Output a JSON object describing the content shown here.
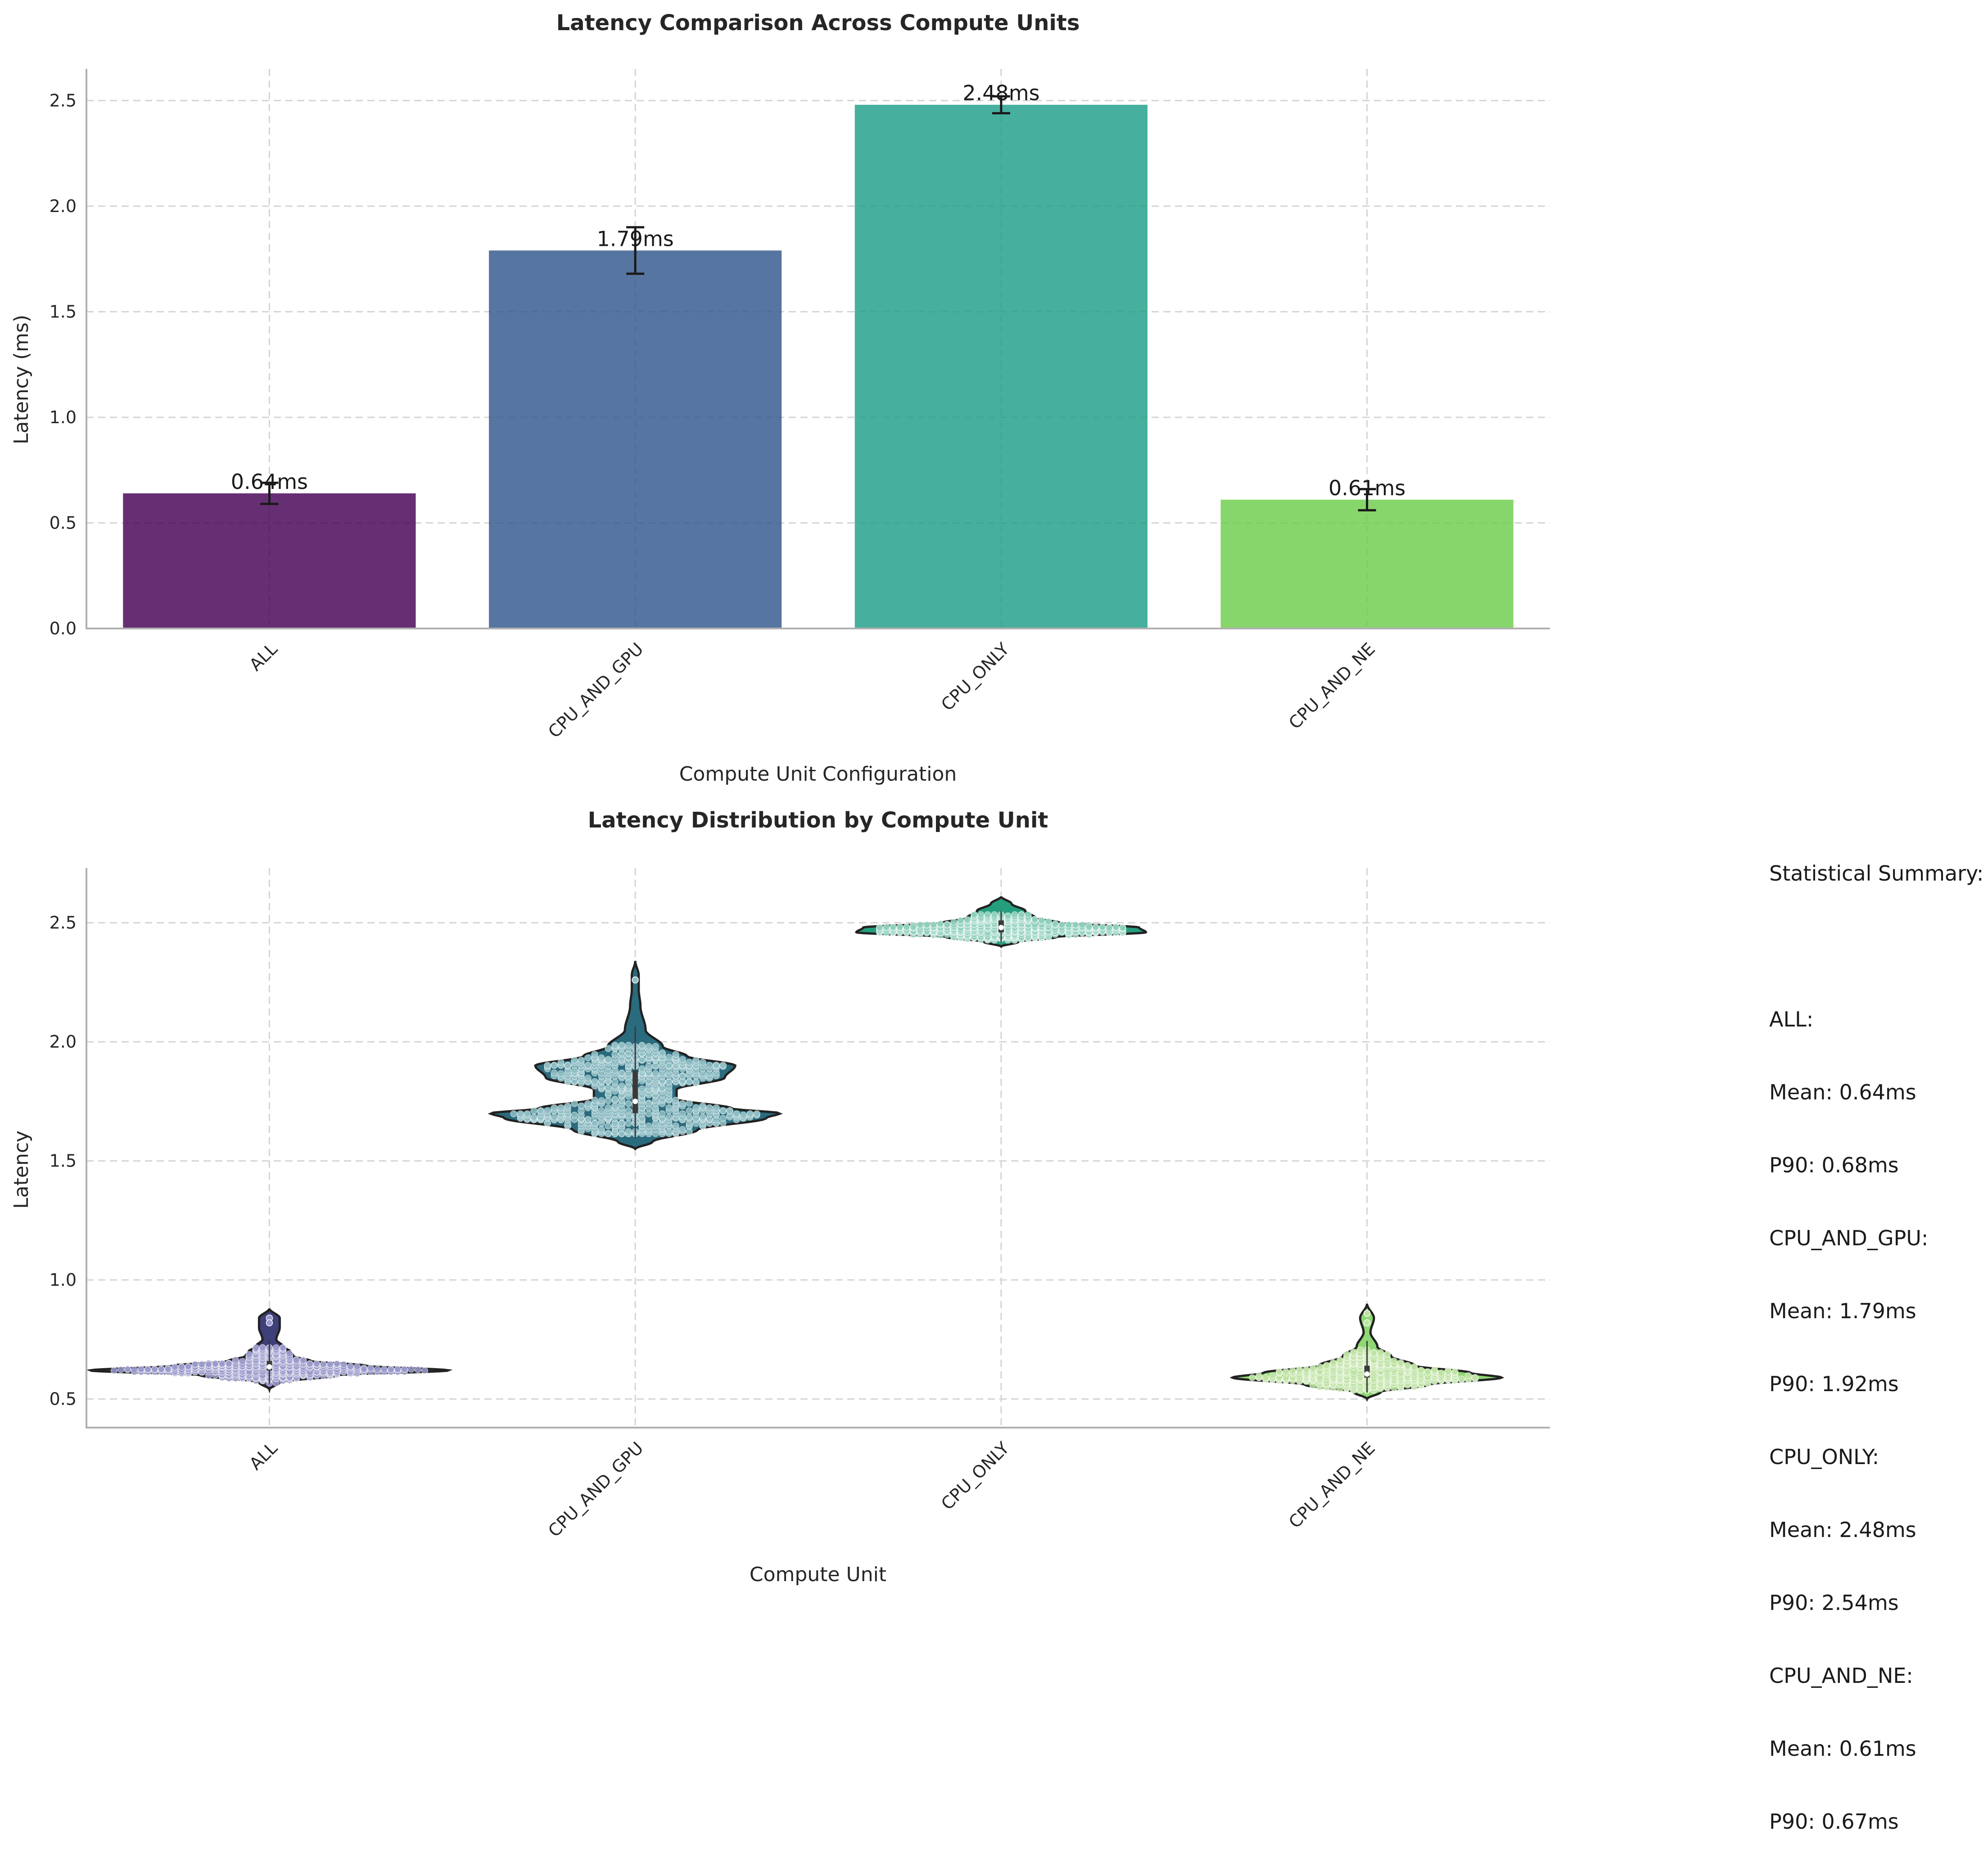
{
  "chart_data": [
    {
      "type": "bar",
      "title": "Latency Comparison Across Compute Units",
      "xlabel": "Compute Unit Configuration",
      "ylabel": "Latency (ms)",
      "categories": [
        "ALL",
        "CPU_AND_GPU",
        "CPU_ONLY",
        "CPU_AND_NE"
      ],
      "values": [
        0.64,
        1.79,
        2.48,
        0.61
      ],
      "errors": [
        0.05,
        0.11,
        0.04,
        0.05
      ],
      "data_labels": [
        "0.64ms",
        "1.79ms",
        "2.48ms",
        "0.61ms"
      ],
      "colors": [
        "#440154",
        "#31578c",
        "#1f9e89",
        "#6dcd4a"
      ],
      "ylim": [
        0,
        2.65
      ],
      "yticks": [
        "0.0",
        "0.5",
        "1.0",
        "1.5",
        "2.0",
        "2.5"
      ],
      "grid": true
    },
    {
      "type": "violin",
      "title": "Latency Distribution by Compute Unit",
      "xlabel": "Compute Unit",
      "ylabel": "Latency",
      "categories": [
        "ALL",
        "CPU_AND_GPU",
        "CPU_ONLY",
        "CPU_AND_NE"
      ],
      "ylim": [
        0.38,
        2.73
      ],
      "yticks": [
        "0.5",
        "1.0",
        "1.5",
        "2.0",
        "2.5"
      ],
      "colors": [
        "#3f3f7a",
        "#2a6b7e",
        "#259e7e",
        "#8fd873"
      ],
      "dot_colors": [
        "#9a9acd",
        "#8fbfc6",
        "#8ed0bc",
        "#bfe3a5"
      ],
      "distributions": [
        {
          "profile": [
            [
              0.54,
              0
            ],
            [
              0.57,
              0.03
            ],
            [
              0.6,
              0.2
            ],
            [
              0.62,
              0.52
            ],
            [
              0.64,
              0.28
            ],
            [
              0.66,
              0.12
            ],
            [
              0.68,
              0.07
            ],
            [
              0.7,
              0.06
            ],
            [
              0.72,
              0.04
            ],
            [
              0.75,
              0.02
            ],
            [
              0.8,
              0.03
            ],
            [
              0.84,
              0.03
            ],
            [
              0.88,
              0
            ]
          ],
          "q1": 0.62,
          "median": 0.635,
          "q3": 0.66,
          "mean": 0.64,
          "p90": 0.68,
          "outliers": [
            0.84,
            0.82
          ]
        },
        {
          "profile": [
            [
              1.55,
              0
            ],
            [
              1.58,
              0.05
            ],
            [
              1.63,
              0.18
            ],
            [
              1.68,
              0.38
            ],
            [
              1.7,
              0.42
            ],
            [
              1.72,
              0.28
            ],
            [
              1.76,
              0.12
            ],
            [
              1.8,
              0.12
            ],
            [
              1.85,
              0.26
            ],
            [
              1.9,
              0.29
            ],
            [
              1.94,
              0.15
            ],
            [
              1.98,
              0.08
            ],
            [
              2.05,
              0.03
            ],
            [
              2.15,
              0.015
            ],
            [
              2.22,
              0.01
            ],
            [
              2.28,
              0.01
            ],
            [
              2.34,
              0
            ]
          ],
          "q1": 1.7,
          "median": 1.75,
          "q3": 1.88,
          "mean": 1.79,
          "p90": 1.92,
          "outliers": [
            2.26
          ]
        },
        {
          "profile": [
            [
              2.4,
              0
            ],
            [
              2.42,
              0.05
            ],
            [
              2.44,
              0.16
            ],
            [
              2.46,
              0.42
            ],
            [
              2.48,
              0.4
            ],
            [
              2.5,
              0.17
            ],
            [
              2.52,
              0.1
            ],
            [
              2.55,
              0.07
            ],
            [
              2.58,
              0.03
            ],
            [
              2.61,
              0
            ]
          ],
          "q1": 2.46,
          "median": 2.48,
          "q3": 2.51,
          "mean": 2.48,
          "p90": 2.54,
          "outliers": []
        },
        {
          "profile": [
            [
              0.5,
              0
            ],
            [
              0.53,
              0.04
            ],
            [
              0.56,
              0.18
            ],
            [
              0.59,
              0.39
            ],
            [
              0.61,
              0.3
            ],
            [
              0.64,
              0.14
            ],
            [
              0.68,
              0.07
            ],
            [
              0.72,
              0.03
            ],
            [
              0.78,
              0.01
            ],
            [
              0.84,
              0.02
            ],
            [
              0.9,
              0
            ]
          ],
          "q1": 0.59,
          "median": 0.605,
          "q3": 0.64,
          "mean": 0.61,
          "p90": 0.67,
          "outliers": [
            0.86,
            0.82
          ]
        }
      ]
    }
  ],
  "summary": {
    "heading": "Statistical Summary:",
    "entries": [
      {
        "name": "ALL:",
        "mean": "Mean: 0.64ms",
        "p90": "P90: 0.68ms"
      },
      {
        "name": "CPU_AND_GPU:",
        "mean": "Mean: 1.79ms",
        "p90": "P90: 1.92ms"
      },
      {
        "name": "CPU_ONLY:",
        "mean": "Mean: 2.48ms",
        "p90": "P90: 2.54ms"
      },
      {
        "name": "CPU_AND_NE:",
        "mean": "Mean: 0.61ms",
        "p90": "P90: 0.67ms"
      }
    ]
  }
}
